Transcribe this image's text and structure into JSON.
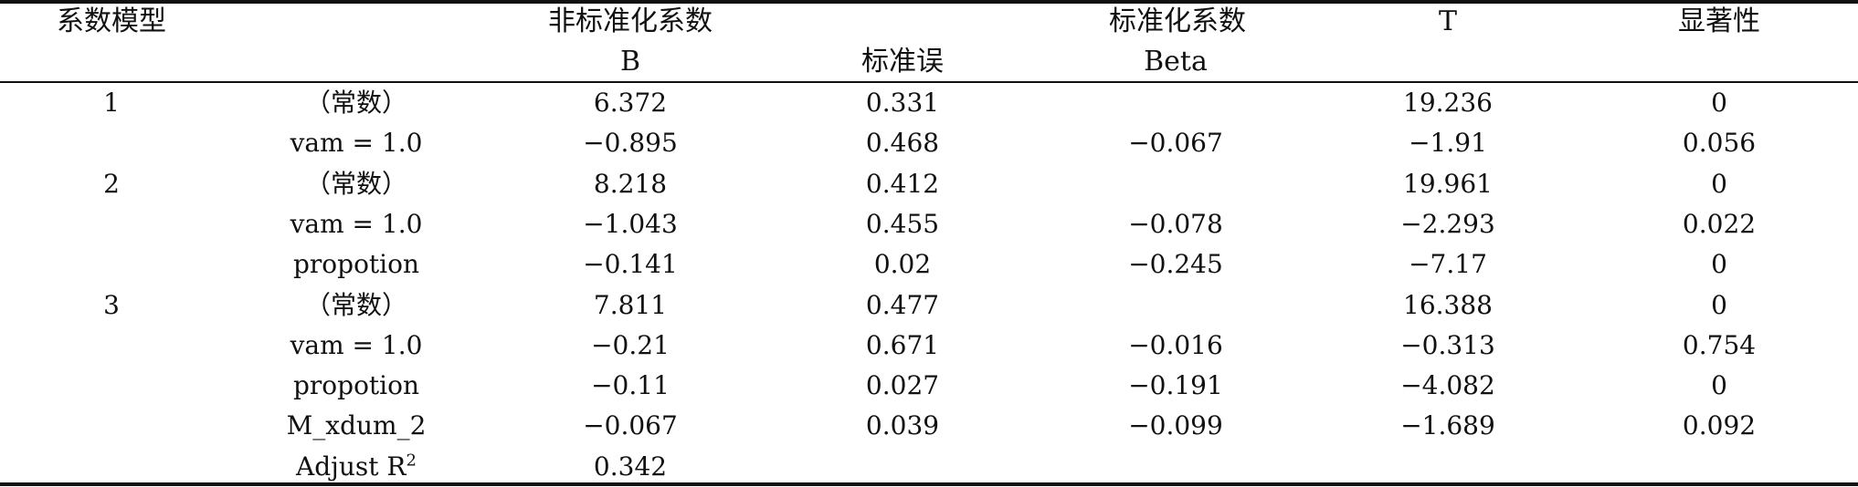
{
  "header": {
    "model": "系数模型",
    "unstd": "非标准化系数",
    "std": "标准化系数",
    "t": "T",
    "sig": "显著性",
    "b": "B",
    "se": "标准误",
    "beta": "Beta"
  },
  "rows": [
    {
      "model": "1",
      "var": "（常数）",
      "b": "6.372",
      "se": "0.331",
      "beta": "",
      "t": "19.236",
      "sig": "0"
    },
    {
      "model": "",
      "var": "vam = 1.0",
      "b": "−0.895",
      "se": "0.468",
      "beta": "−0.067",
      "t": "−1.91",
      "sig": "0.056"
    },
    {
      "model": "2",
      "var": "（常数）",
      "b": "8.218",
      "se": "0.412",
      "beta": "",
      "t": "19.961",
      "sig": "0"
    },
    {
      "model": "",
      "var": "vam = 1.0",
      "b": "−1.043",
      "se": "0.455",
      "beta": "−0.078",
      "t": "−2.293",
      "sig": "0.022"
    },
    {
      "model": "",
      "var": "propotion",
      "b": "−0.141",
      "se": "0.02",
      "beta": "−0.245",
      "t": "−7.17",
      "sig": "0"
    },
    {
      "model": "3",
      "var": "（常数）",
      "b": "7.811",
      "se": "0.477",
      "beta": "",
      "t": "16.388",
      "sig": "0"
    },
    {
      "model": "",
      "var": "vam = 1.0",
      "b": "−0.21",
      "se": "0.671",
      "beta": "−0.016",
      "t": "−0.313",
      "sig": "0.754"
    },
    {
      "model": "",
      "var": "propotion",
      "b": "−0.11",
      "se": "0.027",
      "beta": "−0.191",
      "t": "−4.082",
      "sig": "0"
    },
    {
      "model": "",
      "var": "M_xdum_2",
      "b": "−0.067",
      "se": "0.039",
      "beta": "−0.099",
      "t": "−1.689",
      "sig": "0.092"
    }
  ],
  "adjust": {
    "label": "Adjust R",
    "sup": "2",
    "value": "0.342"
  }
}
